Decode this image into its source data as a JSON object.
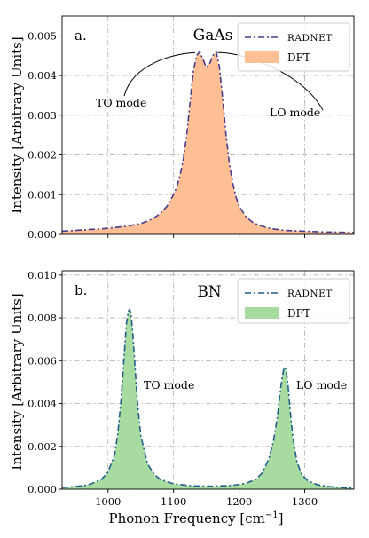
{
  "chart_data": [
    {
      "type": "area",
      "panel_label": "a.",
      "title": "GaAs",
      "ylabel": "Intensity [Arbitrary Units]",
      "xlabel": "",
      "xlim": [
        930,
        1375
      ],
      "ylim": [
        0,
        0.0055
      ],
      "xticks": [
        1000,
        1100,
        1200,
        1300
      ],
      "show_xtick_labels": false,
      "yticks": [
        0.0,
        0.001,
        0.002,
        0.003,
        0.004,
        0.005
      ],
      "ytick_labels": [
        "0.000",
        "0.001",
        "0.002",
        "0.003",
        "0.004",
        "0.005"
      ],
      "grid": true,
      "legend_position": "top-right",
      "series": [
        {
          "name": "RADNET",
          "style": "dash-dot line",
          "color": "#4b3a8c"
        },
        {
          "name": "DFT",
          "style": "filled area",
          "color": "#ffbf94"
        }
      ],
      "x": [
        930,
        950,
        970,
        990,
        1010,
        1030,
        1050,
        1060,
        1070,
        1080,
        1090,
        1100,
        1105,
        1110,
        1115,
        1120,
        1125,
        1130,
        1135,
        1140,
        1145,
        1150,
        1155,
        1160,
        1165,
        1170,
        1175,
        1180,
        1185,
        1190,
        1195,
        1200,
        1210,
        1220,
        1230,
        1240,
        1250,
        1270,
        1300,
        1330,
        1375
      ],
      "values": [
        8e-05,
        0.0001,
        0.00012,
        0.00014,
        0.00017,
        0.00021,
        0.00027,
        0.00033,
        0.00041,
        0.00053,
        0.00071,
        0.001,
        0.0012,
        0.0015,
        0.0019,
        0.0025,
        0.0033,
        0.0041,
        0.0045,
        0.0046,
        0.0044,
        0.0042,
        0.0043,
        0.0045,
        0.0046,
        0.0042,
        0.0034,
        0.0025,
        0.0018,
        0.0013,
        0.00095,
        0.00071,
        0.00045,
        0.00031,
        0.00023,
        0.00018,
        0.00014,
        0.0001,
        8e-05,
        6e-05,
        5e-05
      ],
      "annotations": [
        {
          "text": "TO mode",
          "target_x": 1138,
          "target_y": 0.00462
        },
        {
          "text": "LO mode",
          "target_x": 1162,
          "target_y": 0.00462
        }
      ]
    },
    {
      "type": "area",
      "panel_label": "b.",
      "title": "BN",
      "ylabel": "Intensity [Arbitrary Units]",
      "xlabel": "Phonon Frequency [cm⁻¹]",
      "xlim": [
        930,
        1375
      ],
      "ylim": [
        0,
        0.0102
      ],
      "xticks": [
        1000,
        1100,
        1200,
        1300
      ],
      "show_xtick_labels": true,
      "yticks": [
        0.0,
        0.002,
        0.004,
        0.006,
        0.008,
        0.01
      ],
      "ytick_labels": [
        "0.000",
        "0.002",
        "0.004",
        "0.006",
        "0.008",
        "0.010"
      ],
      "grid": true,
      "legend_position": "top-right",
      "series": [
        {
          "name": "RADNET",
          "style": "dash-dot line",
          "color": "#1f5f8b"
        },
        {
          "name": "DFT",
          "style": "filled area",
          "color": "#a8dba0"
        }
      ],
      "x": [
        930,
        950,
        970,
        990,
        1000,
        1010,
        1015,
        1020,
        1025,
        1028,
        1031,
        1033,
        1035,
        1038,
        1041,
        1045,
        1050,
        1060,
        1070,
        1080,
        1100,
        1130,
        1160,
        1190,
        1210,
        1225,
        1235,
        1245,
        1252,
        1258,
        1262,
        1265,
        1268,
        1270,
        1272,
        1275,
        1278,
        1282,
        1288,
        1295,
        1305,
        1320,
        1340,
        1360,
        1375
      ],
      "values": [
        8e-05,
        0.00012,
        0.0002,
        0.00045,
        0.0008,
        0.0016,
        0.0026,
        0.0042,
        0.0064,
        0.0077,
        0.0083,
        0.0084,
        0.0082,
        0.0072,
        0.0058,
        0.004,
        0.0025,
        0.0012,
        0.0007,
        0.00045,
        0.00025,
        0.00015,
        0.00014,
        0.00018,
        0.00027,
        0.00045,
        0.00075,
        0.0014,
        0.0022,
        0.0033,
        0.0044,
        0.0051,
        0.0056,
        0.0057,
        0.0055,
        0.0047,
        0.0036,
        0.0024,
        0.0013,
        0.0007,
        0.00038,
        0.0002,
        0.00011,
        7e-05,
        5e-05
      ],
      "annotations": [
        {
          "text": "TO mode",
          "target_x": 1033,
          "target_y": 0.0084
        },
        {
          "text": "LO mode",
          "target_x": 1270,
          "target_y": 0.0057
        }
      ]
    }
  ]
}
